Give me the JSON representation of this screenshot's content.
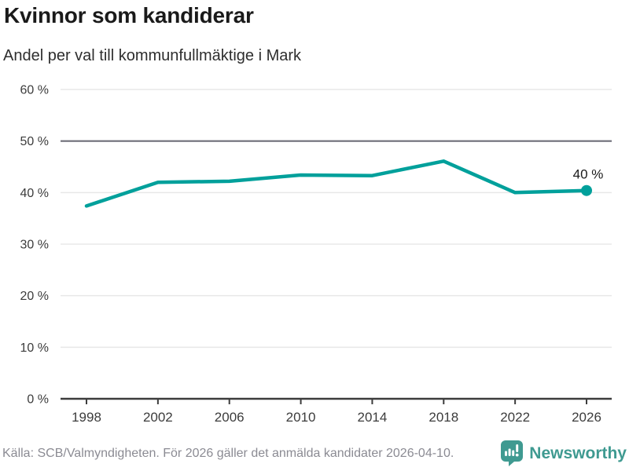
{
  "header": {
    "title": "Kvinnor som kandiderar",
    "subtitle": "Andel per val till kommunfullmäktige i Mark"
  },
  "chart_data": {
    "type": "line",
    "title": "Kvinnor som kandiderar",
    "subtitle": "Andel per val till kommunfullmäktige i Mark",
    "categories": [
      "1998",
      "2002",
      "2006",
      "2010",
      "2014",
      "2018",
      "2022",
      "2026"
    ],
    "values": [
      37.4,
      42.0,
      42.2,
      43.4,
      43.3,
      46.1,
      40.0,
      40.4
    ],
    "end_label": "40 %",
    "xlabel": "",
    "ylabel": "",
    "ylim": [
      0,
      60
    ],
    "yticks": [
      0,
      10,
      20,
      30,
      40,
      50,
      60
    ],
    "ytick_suffix": " %",
    "reference_line": 50,
    "grid": true,
    "legend": "none",
    "colors": {
      "line": "#00a09b",
      "grid": "#e8e8e8",
      "reference_grid": "#6e6e78",
      "axis": "#3c3c3c"
    }
  },
  "footer": {
    "source": "Källa: SCB/Valmyndigheten. För 2026 gäller det anmälda kandidater 2026-04-10.",
    "brand": "Newsworthy",
    "brand_color": "#3f9a91"
  }
}
